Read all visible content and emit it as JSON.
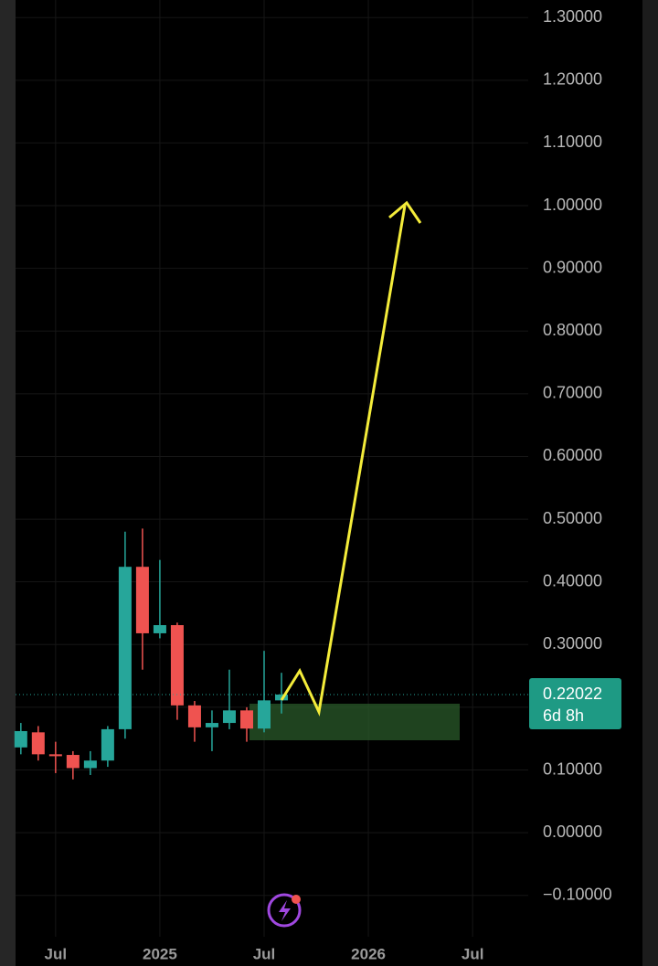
{
  "chart_data": {
    "type": "candlestick",
    "x": [
      0,
      1,
      2,
      3,
      4,
      5,
      6,
      7,
      8,
      9,
      10,
      11,
      12,
      13,
      14,
      15
    ],
    "open": [
      0.136,
      0.16,
      0.125,
      0.124,
      0.103,
      0.115,
      0.165,
      0.424,
      0.318,
      0.331,
      0.203,
      0.168,
      0.175,
      0.195,
      0.166,
      0.211
    ],
    "high": [
      0.175,
      0.17,
      0.145,
      0.13,
      0.13,
      0.17,
      0.48,
      0.485,
      0.435,
      0.335,
      0.21,
      0.195,
      0.26,
      0.2,
      0.29,
      0.255
    ],
    "low": [
      0.125,
      0.115,
      0.095,
      0.085,
      0.092,
      0.105,
      0.15,
      0.26,
      0.31,
      0.18,
      0.145,
      0.13,
      0.165,
      0.145,
      0.16,
      0.19
    ],
    "close": [
      0.162,
      0.125,
      0.122,
      0.103,
      0.115,
      0.165,
      0.424,
      0.318,
      0.331,
      0.203,
      0.168,
      0.175,
      0.195,
      0.166,
      0.211,
      0.22022
    ],
    "up_color": "#26a69a",
    "down_color": "#ef5350",
    "xlim": [
      -1.2,
      29.2
    ],
    "xticks": [
      {
        "value": 2,
        "label": "Jul"
      },
      {
        "value": 8,
        "label": "2025"
      },
      {
        "value": 14,
        "label": "Jul"
      },
      {
        "value": 20,
        "label": "2026"
      },
      {
        "value": 26,
        "label": "Jul"
      }
    ],
    "ylim": [
      -0.166,
      1.328
    ],
    "yticks": [
      {
        "value": -0.1,
        "label": "−0.10000"
      },
      {
        "value": 0,
        "label": "0.00000"
      },
      {
        "value": 0.1,
        "label": "0.10000"
      },
      {
        "value": 0.2,
        "label": "0.20000"
      },
      {
        "value": 0.3,
        "label": "0.30000"
      },
      {
        "value": 0.4,
        "label": "0.40000"
      },
      {
        "value": 0.5,
        "label": "0.50000"
      },
      {
        "value": 0.6,
        "label": "0.60000"
      },
      {
        "value": 0.7,
        "label": "0.70000"
      },
      {
        "value": 0.8,
        "label": "0.80000"
      },
      {
        "value": 0.9,
        "label": "0.90000"
      },
      {
        "value": 1.0,
        "label": "1.00000"
      },
      {
        "value": 1.1,
        "label": "1.10000"
      },
      {
        "value": 1.2,
        "label": "1.20000"
      },
      {
        "value": 1.3,
        "label": "1.30000"
      }
    ],
    "grid": true,
    "last_price": 0.22022,
    "countdown": "6d 8h"
  }
}
